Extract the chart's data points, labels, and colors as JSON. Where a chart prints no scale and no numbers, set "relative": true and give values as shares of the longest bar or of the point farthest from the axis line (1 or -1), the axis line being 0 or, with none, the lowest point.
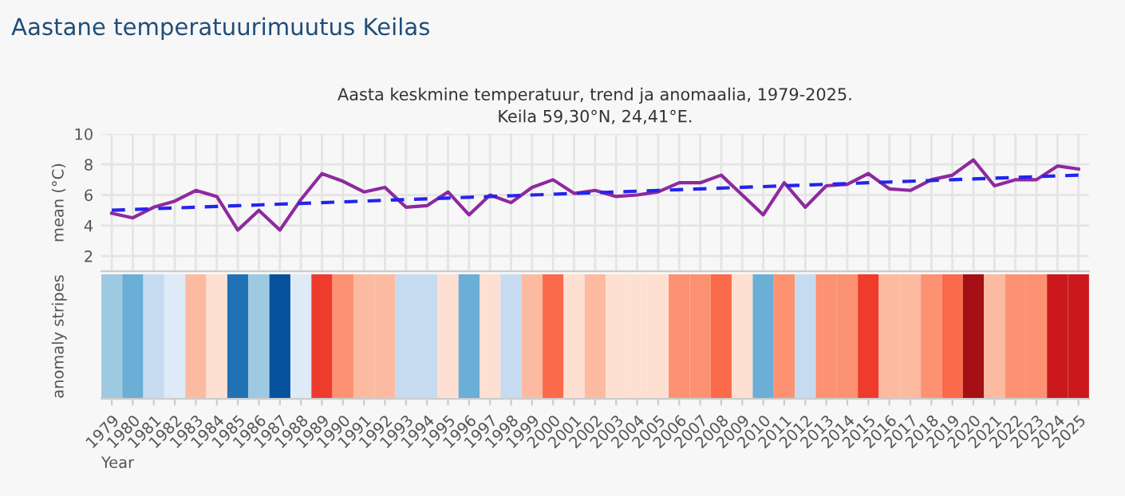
{
  "chart_data": [
    {
      "type": "line",
      "title": "Aasta keskmine temperatuur, trend ja anomaalia, 1979-2025.",
      "subtitle": "Keila 59,30°N, 24,41°E.",
      "ylabel": "mean (°C)",
      "annotations": [
        "Aastane temperatuurimuutus Keilas"
      ],
      "categories": [
        "1979",
        "1980",
        "1981",
        "1982",
        "1983",
        "1984",
        "1985",
        "1986",
        "1987",
        "1988",
        "1989",
        "1990",
        "1991",
        "1992",
        "1993",
        "1994",
        "1995",
        "1996",
        "1997",
        "1998",
        "1999",
        "2000",
        "2001",
        "2002",
        "2003",
        "2004",
        "2005",
        "2006",
        "2007",
        "2008",
        "2009",
        "2010",
        "2011",
        "2012",
        "2013",
        "2014",
        "2015",
        "2016",
        "2017",
        "2018",
        "2019",
        "2020",
        "2021",
        "2022",
        "2023",
        "2024",
        "2025"
      ],
      "series": [
        {
          "color": "#8e2a9e",
          "line_style": "solid",
          "values": [
            4.8,
            4.5,
            5.2,
            5.6,
            6.3,
            5.9,
            3.7,
            5.0,
            3.7,
            5.7,
            7.4,
            6.9,
            6.2,
            6.5,
            5.2,
            5.3,
            6.2,
            4.7,
            6.0,
            5.5,
            6.5,
            7.0,
            6.1,
            6.3,
            5.9,
            6.0,
            6.2,
            6.8,
            6.8,
            7.3,
            6.0,
            4.7,
            6.8,
            5.2,
            6.6,
            6.7,
            7.4,
            6.4,
            6.3,
            7.0,
            7.3,
            8.3,
            6.6,
            7.0,
            7.0,
            7.9,
            7.7
          ]
        },
        {
          "color": "#2424ee",
          "line_style": "dashed",
          "values": [
            5.0,
            5.05,
            5.1,
            5.15,
            5.2,
            5.25,
            5.3,
            5.35,
            5.4,
            5.45,
            5.5,
            5.55,
            5.6,
            5.65,
            5.7,
            5.75,
            5.8,
            5.85,
            5.9,
            5.95,
            6.0,
            6.05,
            6.1,
            6.15,
            6.2,
            6.25,
            6.3,
            6.35,
            6.4,
            6.45,
            6.5,
            6.55,
            6.6,
            6.65,
            6.7,
            6.75,
            6.8,
            6.85,
            6.9,
            6.95,
            7.0,
            7.05,
            7.1,
            7.15,
            7.2,
            7.25,
            7.3
          ]
        }
      ],
      "ylim": [
        1,
        10
      ],
      "yticks": [
        2,
        4,
        6,
        8,
        10
      ],
      "grid": true,
      "tick_labels": "y",
      "marker": "none"
    },
    {
      "type": "bar",
      "ylabel": "anomaly stripes",
      "xlabel": "Year",
      "relative": true,
      "tick_labels": "x",
      "categories": [
        "1979",
        "1980",
        "1981",
        "1982",
        "1983",
        "1984",
        "1985",
        "1986",
        "1987",
        "1988",
        "1989",
        "1990",
        "1991",
        "1992",
        "1993",
        "1994",
        "1995",
        "1996",
        "1997",
        "1998",
        "1999",
        "2000",
        "2001",
        "2002",
        "2003",
        "2004",
        "2005",
        "2006",
        "2007",
        "2008",
        "2009",
        "2010",
        "2011",
        "2012",
        "2013",
        "2014",
        "2015",
        "2016",
        "2017",
        "2018",
        "2019",
        "2020",
        "2021",
        "2022",
        "2023",
        "2024",
        "2025"
      ],
      "values": [
        1,
        1,
        1,
        1,
        1,
        1,
        1,
        1,
        1,
        1,
        1,
        1,
        1,
        1,
        1,
        1,
        1,
        1,
        1,
        1,
        1,
        1,
        1,
        1,
        1,
        1,
        1,
        1,
        1,
        1,
        1,
        1,
        1,
        1,
        1,
        1,
        1,
        1,
        1,
        1,
        1,
        1,
        1,
        1,
        1,
        1,
        1
      ],
      "colors": [
        "#9ecae1",
        "#6baed6",
        "#c6dbef",
        "#deebf7",
        "#fcbba1",
        "#fee0d2",
        "#2171b5",
        "#9ecae1",
        "#08519c",
        "#deebf7",
        "#ef3b2c",
        "#fc9272",
        "#fcbba1",
        "#fcbba1",
        "#c6dbef",
        "#c6dbef",
        "#fee0d2",
        "#6baed6",
        "#fee0d2",
        "#c6dbef",
        "#fcbba1",
        "#fb6a4a",
        "#fee0d2",
        "#fcbba1",
        "#fee0d2",
        "#fee0d2",
        "#fee0d2",
        "#fc9272",
        "#fc9272",
        "#fb6a4a",
        "#fee0d2",
        "#6baed6",
        "#fc9272",
        "#c6dbef",
        "#fc9272",
        "#fc9272",
        "#ef3b2c",
        "#fcbba1",
        "#fcbba1",
        "#fc9272",
        "#fb6a4a",
        "#a50f15",
        "#fcbba1",
        "#fc9272",
        "#fc9272",
        "#cb181d",
        "#cb181d"
      ],
      "grid": false
    }
  ]
}
